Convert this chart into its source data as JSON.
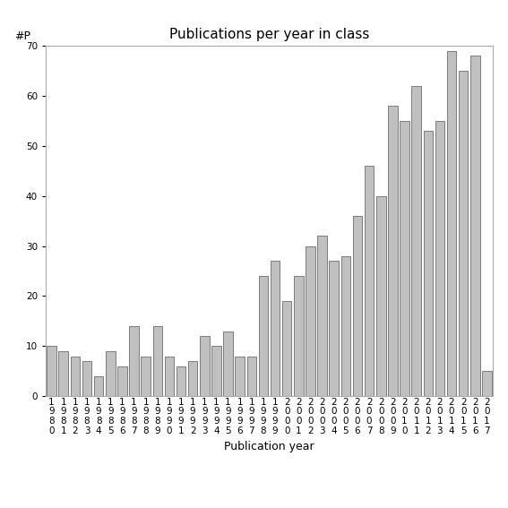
{
  "title": "Publications per year in class",
  "xlabel": "Publication year",
  "ylabel": "#P",
  "years": [
    "1980",
    "1981",
    "1982",
    "1983",
    "1984",
    "1985",
    "1986",
    "1987",
    "1988",
    "1989",
    "1990",
    "1991",
    "1992",
    "1993",
    "1994",
    "1995",
    "1996",
    "1997",
    "1998",
    "1999",
    "2000",
    "2001",
    "2002",
    "2003",
    "2004",
    "2005",
    "2006",
    "2007",
    "2008",
    "2009",
    "2010",
    "2011",
    "2012",
    "2013",
    "2014",
    "2015",
    "2016",
    "2017"
  ],
  "values": [
    10,
    9,
    8,
    7,
    4,
    9,
    6,
    14,
    8,
    14,
    8,
    6,
    7,
    12,
    10,
    13,
    8,
    8,
    24,
    27,
    19,
    24,
    30,
    32,
    27,
    28,
    36,
    46,
    40,
    58,
    55,
    62,
    53,
    55,
    69,
    65,
    68,
    5
  ],
  "bar_color": "#c0c0c0",
  "bar_edgecolor": "#555555",
  "background_color": "#ffffff",
  "ylim": [
    0,
    70
  ],
  "yticks": [
    0,
    10,
    20,
    30,
    40,
    50,
    60,
    70
  ],
  "title_fontsize": 11,
  "axis_label_fontsize": 9,
  "tick_fontsize": 7.5
}
